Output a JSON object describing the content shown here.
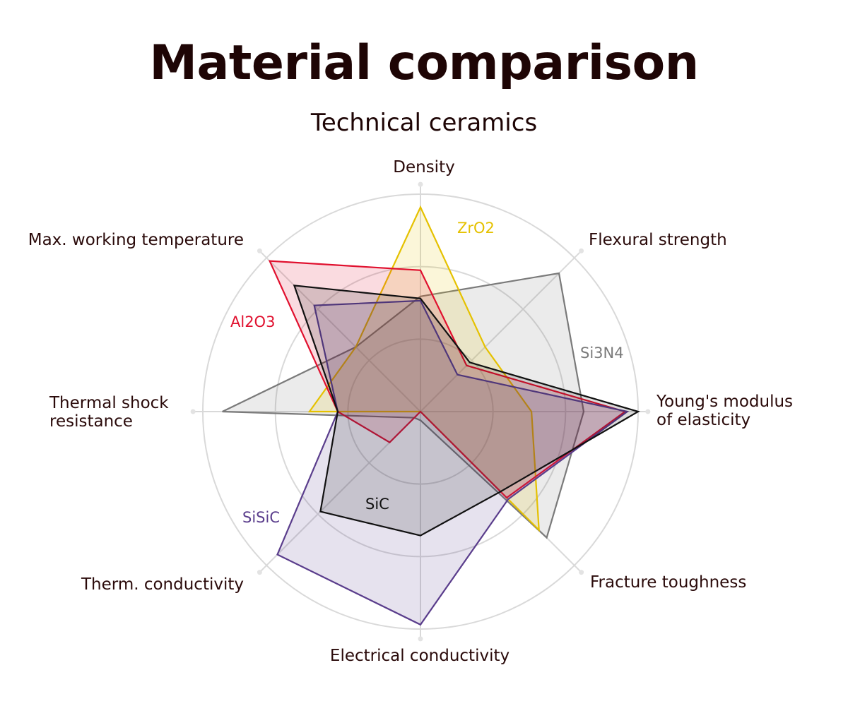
{
  "chart_data": {
    "type": "radar",
    "title": "Material comparison",
    "subtitle": "Technical ceramics",
    "axes": [
      "Density",
      "Flexural strength",
      "Young's modulus of elasticity",
      "Fracture toughness",
      "Electrical conductivity",
      "Therm. conductivity",
      "Thermal shock resistance",
      "Max. working temperature"
    ],
    "rlim": [
      0,
      1
    ],
    "grid": true,
    "series": [
      {
        "name": "Si3N4",
        "color": "#7a7a7a",
        "values": [
          0.53,
          0.9,
          0.75,
          0.82,
          0.04,
          0.04,
          0.91,
          0.42
        ]
      },
      {
        "name": "ZrO2",
        "color": "#e5c100",
        "values": [
          0.94,
          0.42,
          0.51,
          0.77,
          0.0,
          0.0,
          0.51,
          0.42
        ]
      },
      {
        "name": "Al2O3",
        "color": "#e0102e",
        "values": [
          0.65,
          0.3,
          0.94,
          0.56,
          0.0,
          0.2,
          0.38,
          0.98
        ]
      },
      {
        "name": "SiSiC",
        "color": "#5a3d8c",
        "values": [
          0.51,
          0.24,
          0.95,
          0.57,
          0.98,
          0.93,
          0.38,
          0.69
        ]
      },
      {
        "name": "SiC",
        "color": "#111111",
        "values": [
          0.52,
          0.32,
          1.0,
          0.52,
          0.57,
          0.65,
          0.38,
          0.82
        ]
      }
    ]
  }
}
